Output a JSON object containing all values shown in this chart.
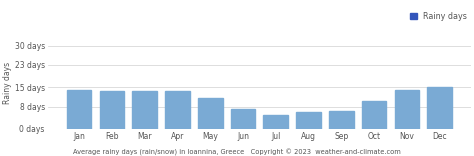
{
  "months": [
    "Jan",
    "Feb",
    "Mar",
    "Apr",
    "May",
    "Jun",
    "Jul",
    "Aug",
    "Sep",
    "Oct",
    "Nov",
    "Dec"
  ],
  "values": [
    14,
    13.5,
    13.5,
    13.5,
    11,
    7,
    5,
    6,
    6.5,
    10,
    14,
    15
  ],
  "bar_color": "#7aaad4",
  "legend_color": "#3355bb",
  "legend_label": "Rainy days",
  "ylabel": "Rainy days",
  "xlabel": "Average rainy days (rain/snow) in Ioannina, Greece   Copyright © 2023  weather-and-climate.com",
  "yticks": [
    0,
    8,
    15,
    23,
    30
  ],
  "ytick_labels": [
    "0 days",
    "8 days",
    "15 days",
    "23 days",
    "30 days"
  ],
  "ylim": [
    0,
    33
  ],
  "background_color": "#ffffff",
  "grid_color": "#d0d0d0",
  "label_color": "#555555",
  "ylabel_fontsize": 5.5,
  "xlabel_fontsize": 4.8,
  "tick_fontsize": 5.5,
  "legend_fontsize": 5.8
}
